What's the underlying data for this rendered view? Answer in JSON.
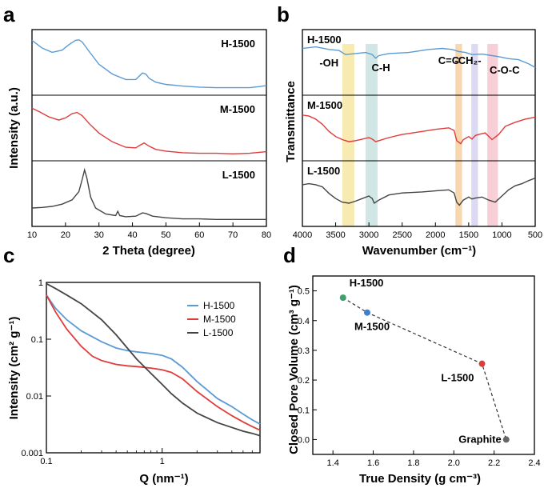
{
  "chart_data": [
    {
      "panel": "a",
      "type": "line",
      "xlabel": "2 Theta (degree)",
      "ylabel": "Intensity (a.u.)",
      "xlim": [
        10,
        80
      ],
      "xticks": [
        10,
        20,
        30,
        40,
        50,
        60,
        70,
        80
      ],
      "series": [
        {
          "name": "H-1500",
          "color": "#5b9bd5",
          "x": [
            10,
            13,
            16,
            19,
            21,
            23,
            24,
            25,
            27,
            30,
            34,
            38,
            41,
            42,
            43,
            44,
            45,
            47,
            50,
            55,
            60,
            65,
            70,
            75,
            78,
            80
          ],
          "y": [
            0.92,
            0.78,
            0.7,
            0.74,
            0.84,
            0.92,
            0.93,
            0.89,
            0.72,
            0.48,
            0.3,
            0.2,
            0.2,
            0.26,
            0.32,
            0.3,
            0.22,
            0.15,
            0.11,
            0.08,
            0.06,
            0.05,
            0.05,
            0.05,
            0.07,
            0.09
          ]
        },
        {
          "name": "M-1500",
          "color": "#e03b3b",
          "x": [
            10,
            12,
            15,
            18,
            20,
            22,
            23.5,
            25,
            27,
            30,
            34,
            38,
            41,
            42,
            43.5,
            45,
            47,
            50,
            55,
            60,
            65,
            70,
            75,
            80
          ],
          "y": [
            0.88,
            0.82,
            0.72,
            0.66,
            0.7,
            0.78,
            0.8,
            0.74,
            0.6,
            0.42,
            0.26,
            0.16,
            0.15,
            0.19,
            0.24,
            0.18,
            0.12,
            0.09,
            0.06,
            0.05,
            0.05,
            0.04,
            0.05,
            0.08
          ]
        },
        {
          "name": "L-1500",
          "color": "#444444",
          "x": [
            10,
            13,
            16,
            19,
            22,
            24,
            25,
            25.7,
            26.4,
            27.5,
            29,
            32,
            35,
            35.6,
            36.2,
            38,
            41,
            43,
            44,
            46,
            50,
            55,
            60,
            65,
            70,
            75,
            80
          ],
          "y": [
            0.25,
            0.26,
            0.28,
            0.32,
            0.4,
            0.55,
            0.78,
            0.95,
            0.8,
            0.45,
            0.25,
            0.14,
            0.11,
            0.19,
            0.11,
            0.09,
            0.1,
            0.16,
            0.15,
            0.1,
            0.07,
            0.05,
            0.05,
            0.04,
            0.04,
            0.04,
            0.04
          ]
        }
      ]
    },
    {
      "panel": "b",
      "type": "line",
      "xlabel": "Wavenumber (cm⁻¹)",
      "ylabel": "Transmittance",
      "xlim": [
        4000,
        500
      ],
      "xticks": [
        4000,
        3500,
        3000,
        2500,
        2000,
        1500,
        1000,
        500
      ],
      "bands": [
        {
          "label": "-OH",
          "from": 3400,
          "to": 3220,
          "color": "#f6e7a3"
        },
        {
          "label": "C-H",
          "from": 3050,
          "to": 2870,
          "color": "#c9e3e2"
        },
        {
          "label": "C=C",
          "from": 1700,
          "to": 1600,
          "color": "#f7cfa0"
        },
        {
          "label": "-CH₂-",
          "from": 1460,
          "to": 1360,
          "color": "#d6d3f0"
        },
        {
          "label": "C-O-C",
          "from": 1220,
          "to": 1060,
          "color": "#f7c7cf"
        }
      ],
      "series": [
        {
          "name": "H-1500",
          "color": "#5b9bd5",
          "x": [
            4000,
            3800,
            3600,
            3450,
            3350,
            3200,
            3050,
            2950,
            2900,
            2850,
            2700,
            2400,
            2100,
            1900,
            1750,
            1650,
            1550,
            1450,
            1300,
            1150,
            1050,
            900,
            750,
            600,
            500
          ],
          "y": [
            0.82,
            0.85,
            0.8,
            0.78,
            0.7,
            0.72,
            0.74,
            0.7,
            0.63,
            0.68,
            0.72,
            0.74,
            0.8,
            0.82,
            0.8,
            0.76,
            0.74,
            0.7,
            0.71,
            0.68,
            0.66,
            0.62,
            0.6,
            0.52,
            0.45
          ]
        },
        {
          "name": "M-1500",
          "color": "#e03b3b",
          "x": [
            4000,
            3900,
            3800,
            3700,
            3600,
            3500,
            3400,
            3300,
            3200,
            3100,
            3000,
            2950,
            2900,
            2850,
            2700,
            2500,
            2200,
            2000,
            1800,
            1720,
            1680,
            1620,
            1580,
            1500,
            1450,
            1400,
            1350,
            1250,
            1150,
            1050,
            950,
            800,
            650,
            500
          ],
          "y": [
            0.8,
            0.78,
            0.72,
            0.62,
            0.48,
            0.38,
            0.32,
            0.28,
            0.3,
            0.33,
            0.36,
            0.33,
            0.28,
            0.3,
            0.36,
            0.42,
            0.48,
            0.52,
            0.55,
            0.5,
            0.3,
            0.24,
            0.32,
            0.38,
            0.33,
            0.4,
            0.42,
            0.45,
            0.32,
            0.42,
            0.58,
            0.66,
            0.72,
            0.76
          ]
        },
        {
          "name": "L-1500",
          "color": "#444444",
          "x": [
            4000,
            3900,
            3800,
            3700,
            3600,
            3500,
            3400,
            3300,
            3200,
            3100,
            3000,
            2950,
            2920,
            2850,
            2700,
            2500,
            2200,
            2000,
            1800,
            1720,
            1680,
            1640,
            1580,
            1500,
            1450,
            1400,
            1300,
            1200,
            1100,
            1000,
            900,
            800,
            700,
            600,
            500
          ],
          "y": [
            0.72,
            0.74,
            0.72,
            0.68,
            0.55,
            0.45,
            0.38,
            0.36,
            0.4,
            0.45,
            0.5,
            0.45,
            0.36,
            0.42,
            0.52,
            0.56,
            0.58,
            0.6,
            0.62,
            0.56,
            0.38,
            0.32,
            0.42,
            0.48,
            0.44,
            0.46,
            0.48,
            0.42,
            0.38,
            0.5,
            0.62,
            0.7,
            0.74,
            0.8,
            0.85
          ]
        }
      ]
    },
    {
      "panel": "c",
      "type": "line",
      "xscale": "log",
      "yscale": "log",
      "xlabel": "Q (nm⁻¹)",
      "ylabel": "Intensity (cm² g⁻¹)",
      "xlim": [
        0.1,
        7
      ],
      "ylim": [
        0.001,
        1
      ],
      "xticks": [
        0.1,
        1
      ],
      "yticks": [
        0.001,
        0.01,
        0.1,
        1
      ],
      "legend": "top-right",
      "series": [
        {
          "name": "H-1500",
          "color": "#5b9bd5",
          "x": [
            0.1,
            0.12,
            0.15,
            0.2,
            0.3,
            0.4,
            0.5,
            0.6,
            0.8,
            1.0,
            1.2,
            1.5,
            2,
            3,
            4,
            5,
            6,
            7
          ],
          "y": [
            0.6,
            0.35,
            0.22,
            0.14,
            0.09,
            0.07,
            0.063,
            0.06,
            0.056,
            0.052,
            0.045,
            0.032,
            0.018,
            0.009,
            0.0065,
            0.0048,
            0.0038,
            0.0032
          ]
        },
        {
          "name": "M-1500",
          "color": "#e03b3b",
          "x": [
            0.1,
            0.12,
            0.15,
            0.2,
            0.25,
            0.3,
            0.4,
            0.5,
            0.6,
            0.8,
            1.0,
            1.2,
            1.5,
            2,
            3,
            4,
            5,
            6,
            7
          ],
          "y": [
            0.6,
            0.3,
            0.15,
            0.075,
            0.05,
            0.042,
            0.036,
            0.034,
            0.033,
            0.031,
            0.029,
            0.026,
            0.02,
            0.012,
            0.0065,
            0.0045,
            0.0035,
            0.0029,
            0.0025
          ]
        },
        {
          "name": "L-1500",
          "color": "#444444",
          "x": [
            0.1,
            0.12,
            0.15,
            0.2,
            0.3,
            0.4,
            0.5,
            0.6,
            0.8,
            1.0,
            1.2,
            1.5,
            2,
            3,
            4,
            5,
            6,
            7
          ],
          "y": [
            0.95,
            0.78,
            0.6,
            0.42,
            0.22,
            0.12,
            0.07,
            0.045,
            0.025,
            0.016,
            0.011,
            0.0075,
            0.005,
            0.0034,
            0.0028,
            0.0024,
            0.0022,
            0.002
          ]
        }
      ]
    },
    {
      "panel": "d",
      "type": "scatter",
      "xlabel": "True Density (g cm⁻³)",
      "ylabel": "Closed Pore Volume (cm³ g⁻¹)",
      "xlim": [
        1.3,
        2.4
      ],
      "ylim": [
        -0.05,
        0.55
      ],
      "xticks": [
        1.4,
        1.6,
        1.8,
        2.0,
        2.2,
        2.4
      ],
      "yticks": [
        0.0,
        0.1,
        0.2,
        0.3,
        0.4,
        0.5
      ],
      "points": [
        {
          "label": "H-1500",
          "x": 1.45,
          "y": 0.477,
          "color": "#3aa36a"
        },
        {
          "label": "M-1500",
          "x": 1.57,
          "y": 0.427,
          "color": "#3f7fd0"
        },
        {
          "label": "L-1500",
          "x": 2.14,
          "y": 0.255,
          "color": "#e03b3b"
        },
        {
          "label": "Graphite",
          "x": 2.26,
          "y": 0.0,
          "color": "#666666"
        }
      ],
      "connector": "dashed"
    }
  ],
  "labels": {
    "panel_a": "a",
    "panel_b": "b",
    "panel_c": "c",
    "panel_d": "d"
  }
}
